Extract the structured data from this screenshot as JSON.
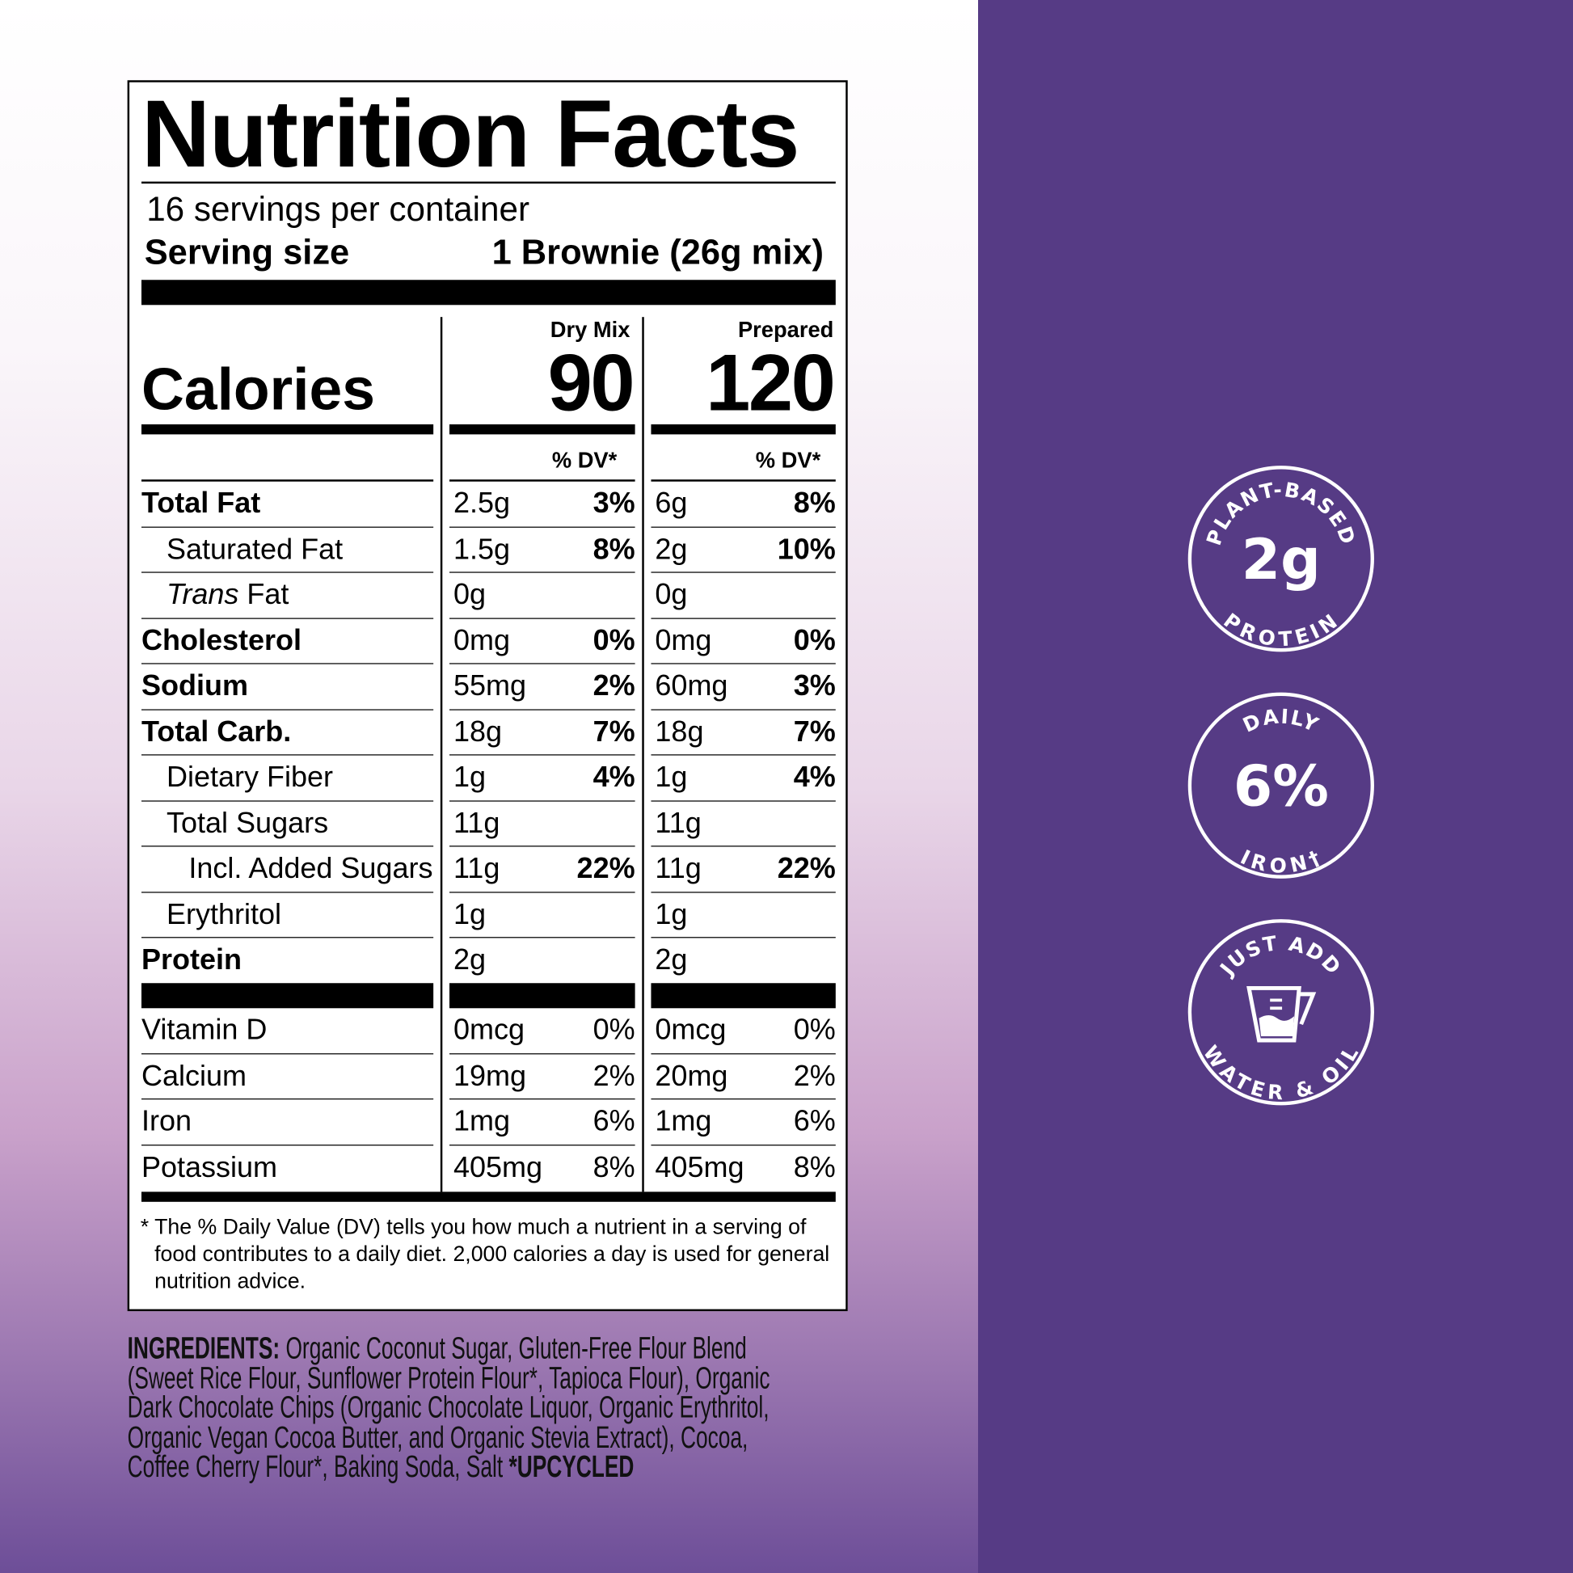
{
  "colors": {
    "panel_purple": "#563b85",
    "label_bg": "#ffffff",
    "text": "#000000"
  },
  "label": {
    "title": "Nutrition Facts",
    "servings": "16 servings per container",
    "serving_size_label": "Serving size",
    "serving_size_value": "1 Brownie (26g mix)",
    "calories_label": "Calories",
    "columns": [
      {
        "header": "Dry Mix",
        "calories": "90",
        "dv_header": "% DV*"
      },
      {
        "header": "Prepared",
        "calories": "120",
        "dv_header": "% DV*"
      }
    ],
    "nutrients": [
      {
        "name": "Total Fat",
        "bold": true,
        "indent": 0,
        "dry": [
          "2.5g",
          "3%"
        ],
        "prep": [
          "6g",
          "8%"
        ]
      },
      {
        "name": "Saturated Fat",
        "indent": 1,
        "dry": [
          "1.5g",
          "8%"
        ],
        "prep": [
          "2g",
          "10%"
        ]
      },
      {
        "name": "Trans",
        "name_suffix": " Fat",
        "italic": true,
        "indent": 1,
        "dry": [
          "0g",
          ""
        ],
        "prep": [
          "0g",
          ""
        ]
      },
      {
        "name": "Cholesterol",
        "bold": true,
        "indent": 0,
        "dry": [
          "0mg",
          "0%"
        ],
        "prep": [
          "0mg",
          "0%"
        ]
      },
      {
        "name": "Sodium",
        "bold": true,
        "indent": 0,
        "dry": [
          "55mg",
          "2%"
        ],
        "prep": [
          "60mg",
          "3%"
        ]
      },
      {
        "name": "Total Carb.",
        "bold": true,
        "indent": 0,
        "dry": [
          "18g",
          "7%"
        ],
        "prep": [
          "18g",
          "7%"
        ]
      },
      {
        "name": "Dietary Fiber",
        "indent": 1,
        "dry": [
          "1g",
          "4%"
        ],
        "prep": [
          "1g",
          "4%"
        ]
      },
      {
        "name": "Total Sugars",
        "indent": 1,
        "dry": [
          "11g",
          ""
        ],
        "prep": [
          "11g",
          ""
        ]
      },
      {
        "name": "Incl. Added Sugars",
        "indent": 2,
        "dry": [
          "11g",
          "22%"
        ],
        "prep": [
          "11g",
          "22%"
        ]
      },
      {
        "name": "Erythritol",
        "indent": 1,
        "dry": [
          "1g",
          ""
        ],
        "prep": [
          "1g",
          ""
        ]
      },
      {
        "name": "Protein",
        "bold": true,
        "indent": 0,
        "dry": [
          "2g",
          ""
        ],
        "prep": [
          "2g",
          ""
        ]
      }
    ],
    "vitamins": [
      {
        "name": "Vitamin D",
        "dry": [
          "0mcg",
          "0%"
        ],
        "prep": [
          "0mcg",
          "0%"
        ]
      },
      {
        "name": "Calcium",
        "dry": [
          "19mg",
          "2%"
        ],
        "prep": [
          "20mg",
          "2%"
        ]
      },
      {
        "name": "Iron",
        "dry": [
          "1mg",
          "6%"
        ],
        "prep": [
          "1mg",
          "6%"
        ]
      },
      {
        "name": "Potassium",
        "dry": [
          "405mg",
          "8%"
        ],
        "prep": [
          "405mg",
          "8%"
        ]
      }
    ],
    "footnote": "* The % Daily Value (DV) tells you how much a nutrient in a serving of food contributes to a daily diet. 2,000 calories a day is used for general nutrition advice."
  },
  "ingredients": {
    "heading": "INGREDIENTS:",
    "lines": [
      " Organic Coconut Sugar, Gluten-Free Flour Blend",
      "(Sweet Rice Flour, Sunflower Protein Flour*, Tapioca Flour), Organic",
      "Dark Chocolate Chips (Organic Chocolate Liquor, Organic Erythritol,",
      "Organic Vegan Cocoa Butter, and Organic Stevia Extract), Cocoa,",
      "Coffee Cherry Flour*, Baking Soda, Salt "
    ],
    "note": "*UPCYCLED"
  },
  "badges": [
    {
      "top": "PLANT-BASED",
      "center": "2g",
      "bottom": "PROTEIN",
      "icon": "none"
    },
    {
      "top": "DAILY",
      "center": "6%",
      "bottom": "IRON†",
      "icon": "none"
    },
    {
      "top": "JUST ADD",
      "center": "",
      "bottom": "WATER & OIL",
      "icon": "measuring-cup-icon"
    }
  ]
}
